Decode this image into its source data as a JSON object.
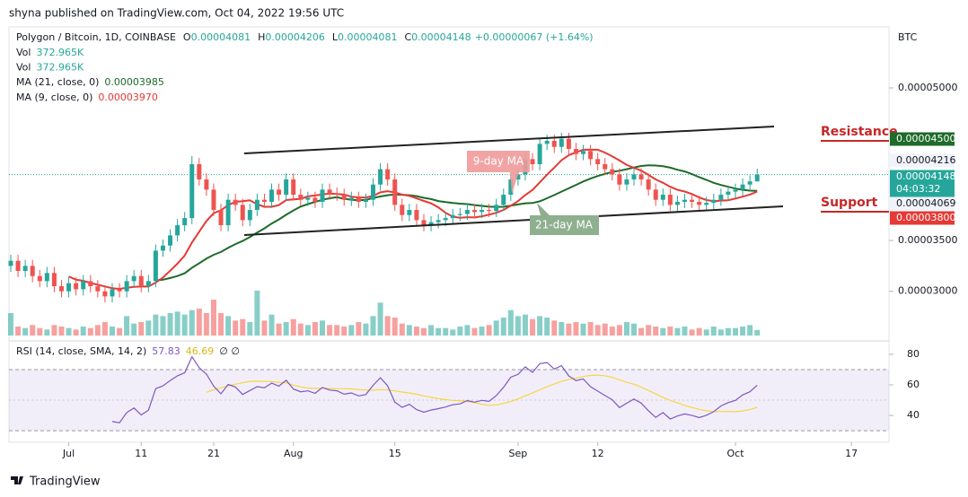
{
  "header": {
    "published": "shyna published on TradingView.com, Oct 04, 2022 19:56 UTC",
    "brand": "TradingView"
  },
  "legend": {
    "symbol": "Polygon / Bitcoin, 1D, COINBASE",
    "ohlc": [
      {
        "label": "O",
        "value": "0.00004081"
      },
      {
        "label": "H",
        "value": "0.00004206"
      },
      {
        "label": "L",
        "value": "0.00004081"
      },
      {
        "label": "C",
        "value": "0.00004148"
      }
    ],
    "change": "+0.00000067 (+1.64%)",
    "volumes": [
      {
        "label": "Vol",
        "value": "372.965K"
      },
      {
        "label": "Vol",
        "value": "372.965K"
      }
    ],
    "mas": [
      {
        "label": "MA (21, close, 0)",
        "value": "0.00003985",
        "color": "#1e6b2a"
      },
      {
        "label": "MA (9, close, 0)",
        "value": "0.00003970",
        "color": "#e53935"
      }
    ],
    "currency": "BTC"
  },
  "price_labels": [
    {
      "label": "0.00004500",
      "kind": "resistance"
    },
    {
      "label": "0.00004216",
      "kind": "plain"
    },
    {
      "label": "0.00004148",
      "kind": "last",
      "countdown": "04:03:32"
    },
    {
      "label": "0.00004069",
      "kind": "plain"
    },
    {
      "label": "0.00003800",
      "kind": "support"
    }
  ],
  "annotations": {
    "resistance": "Resistance",
    "support": "Support",
    "ma9": "9-day MA",
    "ma21": "21-day MA"
  },
  "chart_data": {
    "type": "candlestick",
    "up_color": "#26a69a",
    "down_color": "#ef5350",
    "xlim": [
      -0.5,
      121
    ],
    "xticks": [
      {
        "value": 8,
        "label": "Jul"
      },
      {
        "value": 18,
        "label": "11"
      },
      {
        "value": 28,
        "label": "21"
      },
      {
        "value": 39,
        "label": "Aug"
      },
      {
        "value": 53,
        "label": "15"
      },
      {
        "value": 70,
        "label": "Sep"
      },
      {
        "value": 81,
        "label": "12"
      },
      {
        "value": 100,
        "label": "Oct"
      },
      {
        "value": 116,
        "label": "17"
      }
    ],
    "ylim": [
      2.53e-05,
      5.6e-05
    ],
    "yticks": [
      {
        "value": 5e-05,
        "label": "0.00005000"
      },
      {
        "value": 3.5e-05,
        "label": "0.00003500"
      },
      {
        "value": 3e-05,
        "label": "0.00003000"
      }
    ],
    "open": [
      3.25e-05,
      3.3e-05,
      3.2e-05,
      3.25e-05,
      3.15e-05,
      3.1e-05,
      3.18e-05,
      3.05e-05,
      3e-05,
      3.08e-05,
      3.02e-05,
      3.1e-05,
      3.05e-05,
      3e-05,
      2.95e-05,
      3.02e-05,
      3e-05,
      3.1e-05,
      3.15e-05,
      3.05e-05,
      3.1e-05,
      3.4e-05,
      3.45e-05,
      3.55e-05,
      3.65e-05,
      3.72e-05,
      4.25e-05,
      4.1e-05,
      4e-05,
      3.8e-05,
      3.65e-05,
      3.9e-05,
      3.85e-05,
      3.7e-05,
      3.8e-05,
      3.9e-05,
      3.88e-05,
      4e-05,
      3.95e-05,
      4.1e-05,
      3.95e-05,
      3.9e-05,
      3.92e-05,
      3.88e-05,
      4e-05,
      3.96e-05,
      3.95e-05,
      3.9e-05,
      3.92e-05,
      3.88e-05,
      3.9e-05,
      4.05e-05,
      4.2e-05,
      4.1e-05,
      3.85e-05,
      3.75e-05,
      3.8e-05,
      3.7e-05,
      3.65e-05,
      3.68e-05,
      3.7e-05,
      3.72e-05,
      3.75e-05,
      3.76e-05,
      3.8e-05,
      3.78e-05,
      3.8e-05,
      3.79e-05,
      3.85e-05,
      3.95e-05,
      4.1e-05,
      4.15e-05,
      4.3e-05,
      4.25e-05,
      4.45e-05,
      4.48e-05,
      4.42e-05,
      4.5e-05,
      4.4e-05,
      4.35e-05,
      4.38e-05,
      4.3e-05,
      4.25e-05,
      4.2e-05,
      4.15e-05,
      4.05e-05,
      4.1e-05,
      4.15e-05,
      4.1e-05,
      4e-05,
      3.9e-05,
      3.95e-05,
      3.85e-05,
      3.88e-05,
      3.9e-05,
      3.88e-05,
      3.85e-05,
      3.87e-05,
      3.9e-05,
      3.95e-05,
      3.98e-05,
      4e-05,
      4.05e-05,
      4.081e-05
    ],
    "high": [
      3.36e-05,
      3.36e-05,
      3.31e-05,
      3.31e-05,
      3.21e-05,
      3.24e-05,
      3.24e-05,
      3.11e-05,
      3.14e-05,
      3.14e-05,
      3.16e-05,
      3.16e-05,
      3.11e-05,
      3.06e-05,
      3.08e-05,
      3.08e-05,
      3.16e-05,
      3.21e-05,
      3.21e-05,
      3.16e-05,
      3.46e-05,
      3.51e-05,
      3.61e-05,
      3.71e-05,
      3.78e-05,
      4.33e-05,
      4.31e-05,
      4.16e-05,
      4.06e-05,
      3.86e-05,
      3.96e-05,
      3.96e-05,
      3.91e-05,
      3.86e-05,
      3.96e-05,
      3.96e-05,
      4.06e-05,
      4.06e-05,
      4.16e-05,
      4.16e-05,
      4.01e-05,
      3.98e-05,
      3.98e-05,
      4.06e-05,
      4.06e-05,
      4.02e-05,
      4.01e-05,
      3.98e-05,
      3.98e-05,
      3.96e-05,
      4.11e-05,
      4.26e-05,
      4.26e-05,
      4.16e-05,
      3.91e-05,
      3.86e-05,
      3.86e-05,
      3.76e-05,
      3.74e-05,
      3.76e-05,
      3.78e-05,
      3.81e-05,
      3.82e-05,
      3.86e-05,
      3.86e-05,
      3.86e-05,
      3.86e-05,
      3.91e-05,
      4.01e-05,
      4.16e-05,
      4.21e-05,
      4.36e-05,
      4.36e-05,
      4.51e-05,
      4.54e-05,
      4.54e-05,
      4.56e-05,
      4.56e-05,
      4.46e-05,
      4.44e-05,
      4.44e-05,
      4.36e-05,
      4.31e-05,
      4.26e-05,
      4.21e-05,
      4.16e-05,
      4.21e-05,
      4.21e-05,
      4.16e-05,
      4.06e-05,
      4.01e-05,
      4.01e-05,
      3.94e-05,
      3.96e-05,
      3.96e-05,
      3.94e-05,
      3.93e-05,
      3.96e-05,
      4.01e-05,
      4.04e-05,
      4.06e-05,
      4.11e-05,
      4.14e-05,
      4.206e-05
    ],
    "low": [
      3.19e-05,
      3.14e-05,
      3.14e-05,
      3.09e-05,
      3.04e-05,
      3.04e-05,
      2.99e-05,
      2.94e-05,
      2.94e-05,
      2.96e-05,
      2.96e-05,
      2.99e-05,
      2.94e-05,
      2.89e-05,
      2.89e-05,
      2.94e-05,
      2.94e-05,
      3.04e-05,
      2.99e-05,
      2.99e-05,
      3.04e-05,
      3.34e-05,
      3.39e-05,
      3.49e-05,
      3.59e-05,
      3.66e-05,
      4.04e-05,
      3.94e-05,
      3.74e-05,
      3.59e-05,
      3.59e-05,
      3.79e-05,
      3.64e-05,
      3.64e-05,
      3.74e-05,
      3.82e-05,
      3.82e-05,
      3.89e-05,
      3.89e-05,
      3.89e-05,
      3.84e-05,
      3.84e-05,
      3.82e-05,
      3.82e-05,
      3.9e-05,
      3.89e-05,
      3.84e-05,
      3.84e-05,
      3.82e-05,
      3.82e-05,
      3.84e-05,
      3.99e-05,
      4.04e-05,
      3.79e-05,
      3.69e-05,
      3.69e-05,
      3.64e-05,
      3.59e-05,
      3.59e-05,
      3.62e-05,
      3.64e-05,
      3.66e-05,
      3.69e-05,
      3.7e-05,
      3.72e-05,
      3.72e-05,
      3.73e-05,
      3.73e-05,
      3.79e-05,
      3.89e-05,
      4.04e-05,
      4.09e-05,
      4.19e-05,
      4.19e-05,
      4.39e-05,
      4.36e-05,
      4.36e-05,
      4.34e-05,
      4.29e-05,
      4.29e-05,
      4.24e-05,
      4.19e-05,
      4.14e-05,
      4.09e-05,
      3.99e-05,
      3.99e-05,
      4.04e-05,
      4.04e-05,
      3.94e-05,
      3.84e-05,
      3.84e-05,
      3.79e-05,
      3.79e-05,
      3.82e-05,
      3.82e-05,
      3.79e-05,
      3.79e-05,
      3.81e-05,
      3.84e-05,
      3.89e-05,
      3.92e-05,
      3.94e-05,
      3.99e-05,
      4.081e-05
    ],
    "close": [
      3.3e-05,
      3.2e-05,
      3.25e-05,
      3.15e-05,
      3.1e-05,
      3.18e-05,
      3.05e-05,
      3e-05,
      3.08e-05,
      3.02e-05,
      3.1e-05,
      3.05e-05,
      3e-05,
      2.95e-05,
      3.02e-05,
      3e-05,
      3.1e-05,
      3.15e-05,
      3.05e-05,
      3.1e-05,
      3.4e-05,
      3.45e-05,
      3.55e-05,
      3.65e-05,
      3.72e-05,
      4.25e-05,
      4.1e-05,
      4e-05,
      3.8e-05,
      3.65e-05,
      3.9e-05,
      3.85e-05,
      3.7e-05,
      3.8e-05,
      3.9e-05,
      3.88e-05,
      4e-05,
      3.95e-05,
      4.1e-05,
      3.95e-05,
      3.9e-05,
      3.92e-05,
      3.88e-05,
      4e-05,
      3.96e-05,
      3.95e-05,
      3.9e-05,
      3.92e-05,
      3.88e-05,
      3.9e-05,
      4.05e-05,
      4.2e-05,
      4.1e-05,
      3.85e-05,
      3.75e-05,
      3.8e-05,
      3.7e-05,
      3.65e-05,
      3.68e-05,
      3.7e-05,
      3.72e-05,
      3.75e-05,
      3.76e-05,
      3.8e-05,
      3.78e-05,
      3.8e-05,
      3.79e-05,
      3.85e-05,
      3.95e-05,
      4.1e-05,
      4.15e-05,
      4.3e-05,
      4.25e-05,
      4.45e-05,
      4.48e-05,
      4.42e-05,
      4.5e-05,
      4.4e-05,
      4.35e-05,
      4.38e-05,
      4.3e-05,
      4.25e-05,
      4.2e-05,
      4.15e-05,
      4.05e-05,
      4.1e-05,
      4.15e-05,
      4.1e-05,
      4e-05,
      3.9e-05,
      3.95e-05,
      3.85e-05,
      3.88e-05,
      3.9e-05,
      3.88e-05,
      3.85e-05,
      3.87e-05,
      3.9e-05,
      3.95e-05,
      3.98e-05,
      4e-05,
      4.05e-05,
      4.081e-05,
      4.148e-05
    ],
    "volume": [
      1500000,
      600000,
      500000,
      700000,
      500000,
      400000,
      700000,
      600000,
      500000,
      400000,
      600000,
      500000,
      700000,
      900000,
      600000,
      500000,
      1300000,
      800000,
      900000,
      1000000,
      1400000,
      1300000,
      1500000,
      1600000,
      1400000,
      1700000,
      1800000,
      1500000,
      2400000,
      1500000,
      1300000,
      1000000,
      1100000,
      900000,
      3000000,
      1000000,
      1400000,
      800000,
      900000,
      1100000,
      800000,
      700000,
      900000,
      1000000,
      700000,
      700000,
      600000,
      700000,
      900000,
      800000,
      1300000,
      2200000,
      1300000,
      1200000,
      800000,
      700000,
      600000,
      500000,
      700000,
      500000,
      500000,
      400000,
      600000,
      700000,
      500000,
      600000,
      700000,
      1000000,
      1200000,
      1700000,
      1300000,
      1400000,
      1100000,
      1300000,
      1200000,
      1000000,
      900000,
      800000,
      900000,
      800000,
      900000,
      700000,
      800000,
      600000,
      700000,
      900000,
      800000,
      500000,
      700000,
      600000,
      500000,
      600000,
      500000,
      600000,
      400000,
      500000,
      400000,
      600000,
      400000,
      500000,
      500000,
      600000,
      700000,
      372965
    ]
  },
  "rsi": {
    "title": "RSI (14, close, SMA, 14, 2)",
    "value": "57.83",
    "sma": "46.69",
    "extra": "∅ ∅",
    "ylim": [
      23,
      87
    ],
    "yticks": [
      80,
      60,
      40
    ],
    "band": [
      70,
      30
    ]
  }
}
